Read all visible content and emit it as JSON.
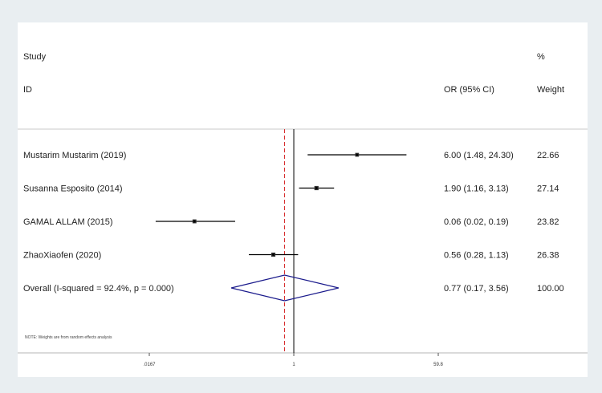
{
  "chart_data": {
    "type": "forest",
    "headers": {
      "study_top": "Study",
      "study_bottom": "ID",
      "or": "OR (95% CI)",
      "weight_top": "%",
      "weight_bottom": "Weight"
    },
    "studies": [
      {
        "label": "Mustarim Mustarim  (2019)",
        "or": 6.0,
        "lower": 1.48,
        "upper": 24.3,
        "or_text": "6.00 (1.48, 24.30)",
        "weight": 22.66,
        "weight_text": "22.66"
      },
      {
        "label": "Susanna Esposito (2014)",
        "or": 1.9,
        "lower": 1.16,
        "upper": 3.13,
        "or_text": "1.90 (1.16, 3.13)",
        "weight": 27.14,
        "weight_text": "27.14"
      },
      {
        "label": "GAMAL ALLAM  (2015)",
        "or": 0.06,
        "lower": 0.02,
        "upper": 0.19,
        "or_text": "0.06 (0.02, 0.19)",
        "weight": 23.82,
        "weight_text": "23.82"
      },
      {
        "label": "ZhaoXiaofen  (2020)",
        "or": 0.56,
        "lower": 0.28,
        "upper": 1.13,
        "or_text": "0.56 (0.28, 1.13)",
        "weight": 26.38,
        "weight_text": "26.38"
      }
    ],
    "overall": {
      "label": "Overall  (I-squared = 92.4%, p = 0.000)",
      "or": 0.77,
      "lower": 0.17,
      "upper": 3.56,
      "or_text": "0.77 (0.17, 3.56)",
      "weight": 100.0,
      "weight_text": "100.00"
    },
    "x_scale": "log",
    "xlim": [
      0.0167,
      59.8
    ],
    "ticks": [
      {
        "value": 0.0167,
        "label": ".0167"
      },
      {
        "value": 1,
        "label": "1"
      },
      {
        "value": 59.8,
        "label": "59.8"
      }
    ],
    "null_line": 1,
    "note": "NOTE: Weights are from random effects analysis",
    "colors": {
      "background": "#e9eef1",
      "panel": "#ffffff",
      "diamond": "#1a1a8c",
      "overall_line": "#d62728",
      "ink": "#000000"
    }
  }
}
